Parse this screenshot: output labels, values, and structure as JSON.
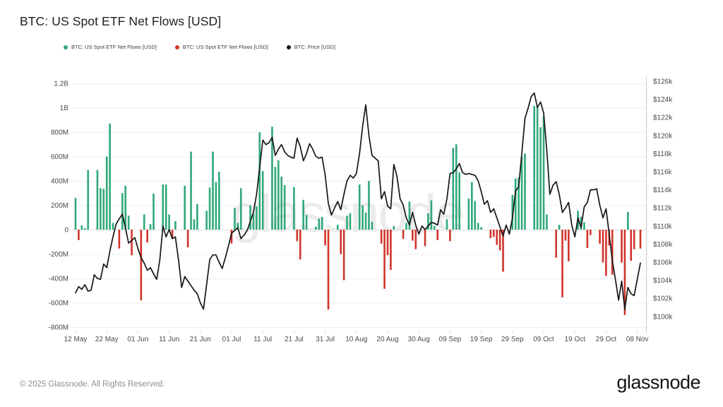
{
  "header": {
    "title": "BTC: US Spot ETF Net Flows [USD]"
  },
  "legend": [
    {
      "label": "BTC: US Spot ETF Net Flows [USD]",
      "color": "#2FA878"
    },
    {
      "label": "BTC: US Spot ETF Net Flows [USD]",
      "color": "#D0342C"
    },
    {
      "label": "BTC: Price [USD]",
      "color": "#161616"
    }
  ],
  "watermark": "glassnode",
  "footer": {
    "copyright": "© 2025 Glassnode. All Rights Reserved.",
    "logo_text": "glassnode"
  },
  "chart_data": {
    "type": "bar+line",
    "title": "BTC: US Spot ETF Net Flows [USD]",
    "x_axis": {
      "start_date": "12 May",
      "end_date": "08 Nov",
      "tick_labels": [
        "12 May",
        "22 May",
        "01 Jun",
        "11 Jun",
        "21 Jun",
        "01 Jul",
        "11 Jul",
        "21 Jul",
        "31 Jul",
        "10 Aug",
        "20 Aug",
        "30 Aug",
        "09 Sep",
        "19 Sep",
        "29 Sep",
        "09 Oct",
        "19 Oct",
        "29 Oct",
        "08 Nov"
      ],
      "tick_day_index": [
        0,
        10,
        20,
        30,
        40,
        50,
        60,
        70,
        80,
        90,
        100,
        110,
        120,
        130,
        140,
        150,
        160,
        170,
        180
      ]
    },
    "left_axis": {
      "series": "ETF net flows (USD)",
      "tick_labels": [
        "1.2B",
        "1B",
        "800M",
        "600M",
        "400M",
        "200M",
        "0",
        "-200M",
        "-400M",
        "-600M",
        "-800M"
      ],
      "tick_values_musd": [
        1200,
        1000,
        800,
        600,
        400,
        200,
        0,
        -200,
        -400,
        -600,
        -800
      ],
      "range_musd": [
        -800,
        1200
      ],
      "grid": true
    },
    "right_axis": {
      "series": "BTC price (USD)",
      "tick_labels": [
        "$126k",
        "$124k",
        "$122k",
        "$120k",
        "$118k",
        "$116k",
        "$114k",
        "$112k",
        "$110k",
        "$108k",
        "$106k",
        "$104k",
        "$102k",
        "$100k"
      ],
      "tick_values_kusd": [
        126,
        124,
        122,
        120,
        118,
        116,
        114,
        112,
        110,
        108,
        106,
        104,
        102,
        100
      ]
    },
    "bars_musd": [
      [
        0,
        260
      ],
      [
        1,
        -85
      ],
      [
        2,
        35
      ],
      [
        3,
        12
      ],
      [
        4,
        490
      ],
      [
        7,
        490
      ],
      [
        8,
        340
      ],
      [
        9,
        335
      ],
      [
        10,
        600
      ],
      [
        11,
        870
      ],
      [
        12,
        55
      ],
      [
        14,
        -155
      ],
      [
        15,
        300
      ],
      [
        16,
        360
      ],
      [
        17,
        115
      ],
      [
        18,
        -210
      ],
      [
        21,
        -580
      ],
      [
        22,
        125
      ],
      [
        23,
        -105
      ],
      [
        24,
        45
      ],
      [
        25,
        295
      ],
      [
        28,
        370
      ],
      [
        29,
        370
      ],
      [
        30,
        125
      ],
      [
        31,
        -70
      ],
      [
        32,
        70
      ],
      [
        35,
        360
      ],
      [
        36,
        -145
      ],
      [
        37,
        640
      ],
      [
        38,
        85
      ],
      [
        39,
        210
      ],
      [
        42,
        155
      ],
      [
        43,
        345
      ],
      [
        44,
        640
      ],
      [
        45,
        390
      ],
      [
        46,
        475
      ],
      [
        50,
        -115
      ],
      [
        51,
        180
      ],
      [
        52,
        55
      ],
      [
        53,
        340
      ],
      [
        56,
        200
      ],
      [
        57,
        130
      ],
      [
        58,
        190
      ],
      [
        59,
        800
      ],
      [
        60,
        480
      ],
      [
        63,
        845
      ],
      [
        64,
        515
      ],
      [
        65,
        570
      ],
      [
        66,
        435
      ],
      [
        67,
        365
      ],
      [
        70,
        350
      ],
      [
        71,
        -95
      ],
      [
        72,
        -245
      ],
      [
        73,
        245
      ],
      [
        74,
        120
      ],
      [
        77,
        25
      ],
      [
        78,
        90
      ],
      [
        79,
        105
      ],
      [
        80,
        -130
      ],
      [
        81,
        -655
      ],
      [
        84,
        40
      ],
      [
        85,
        -200
      ],
      [
        86,
        -415
      ],
      [
        87,
        115
      ],
      [
        88,
        135
      ],
      [
        91,
        370
      ],
      [
        92,
        200
      ],
      [
        93,
        140
      ],
      [
        94,
        400
      ],
      [
        95,
        65
      ],
      [
        98,
        -115
      ],
      [
        99,
        -485
      ],
      [
        100,
        -210
      ],
      [
        101,
        -330
      ],
      [
        102,
        30
      ],
      [
        105,
        -75
      ],
      [
        106,
        55
      ],
      [
        107,
        230
      ],
      [
        108,
        -90
      ],
      [
        109,
        -160
      ],
      [
        112,
        -135
      ],
      [
        113,
        135
      ],
      [
        114,
        240
      ],
      [
        115,
        30
      ],
      [
        116,
        -85
      ],
      [
        119,
        85
      ],
      [
        120,
        -95
      ],
      [
        121,
        670
      ],
      [
        122,
        700
      ],
      [
        123,
        470
      ],
      [
        126,
        255
      ],
      [
        127,
        390
      ],
      [
        128,
        235
      ],
      [
        129,
        55
      ],
      [
        130,
        20
      ],
      [
        133,
        -70
      ],
      [
        134,
        -60
      ],
      [
        135,
        -125
      ],
      [
        136,
        -170
      ],
      [
        137,
        -345
      ],
      [
        140,
        285
      ],
      [
        141,
        420
      ],
      [
        142,
        430
      ],
      [
        143,
        600
      ],
      [
        144,
        625
      ],
      [
        147,
        1015
      ],
      [
        148,
        1010
      ],
      [
        149,
        840
      ],
      [
        150,
        930
      ],
      [
        151,
        125
      ],
      [
        154,
        -230
      ],
      [
        155,
        40
      ],
      [
        156,
        -555
      ],
      [
        157,
        -90
      ],
      [
        158,
        -260
      ],
      [
        161,
        155
      ],
      [
        162,
        105
      ],
      [
        163,
        60
      ],
      [
        164,
        -150
      ],
      [
        165,
        -45
      ],
      [
        168,
        -115
      ],
      [
        169,
        -270
      ],
      [
        170,
        -380
      ],
      [
        171,
        -130
      ],
      [
        172,
        -370
      ],
      [
        175,
        -270
      ],
      [
        176,
        -700
      ],
      [
        177,
        145
      ],
      [
        178,
        -255
      ],
      [
        179,
        -160
      ],
      [
        181,
        -155
      ]
    ],
    "price_kusd": [
      102.6,
      103.3,
      103.0,
      103.5,
      102.8,
      102.9,
      104.6,
      104.2,
      104.1,
      105.8,
      105.4,
      107.2,
      108.8,
      110.2,
      110.8,
      111.3,
      109.8,
      108.1,
      108.4,
      108.7,
      107.5,
      106.5,
      105.9,
      105.1,
      105.4,
      104.7,
      104.1,
      106.2,
      110.0,
      108.8,
      109.6,
      108.6,
      108.8,
      106.2,
      103.2,
      104.4,
      103.9,
      103.4,
      102.9,
      102.5,
      101.5,
      100.8,
      103.5,
      106.3,
      106.8,
      106.8,
      106.0,
      105.3,
      106.5,
      107.8,
      109.2,
      109.5,
      109.8,
      108.6,
      109.0,
      109.5,
      110.5,
      111.5,
      113.5,
      116.5,
      119.5,
      119.0,
      119.2,
      119.8,
      117.8,
      118.5,
      119.0,
      118.2,
      117.8,
      117.6,
      117.5,
      119.7,
      118.8,
      117.2,
      118.0,
      119.1,
      118.5,
      117.7,
      117.5,
      117.6,
      115.6,
      112.5,
      111.2,
      112.0,
      112.7,
      111.8,
      113.5,
      115.0,
      115.6,
      115.3,
      115.8,
      118.0,
      121.0,
      123.4,
      120.0,
      117.8,
      117.5,
      117.2,
      113.0,
      113.8,
      112.2,
      111.9,
      116.8,
      115.5,
      113.0,
      112.3,
      110.9,
      110.1,
      111.5,
      110.1,
      109.1,
      110.0,
      109.6,
      110.0,
      110.4,
      110.3,
      110.1,
      111.8,
      111.3,
      113.0,
      115.8,
      115.9,
      116.3,
      116.9,
      115.9,
      115.7,
      115.8,
      115.7,
      115.6,
      115.0,
      113.8,
      112.4,
      112.8,
      111.5,
      111.9,
      110.9,
      109.9,
      108.9,
      110.1,
      109.1,
      110.9,
      113.9,
      114.3,
      118.0,
      121.9,
      123.0,
      124.3,
      124.7,
      123.1,
      123.7,
      122.5,
      118.4,
      113.5,
      114.5,
      114.9,
      113.5,
      111.5,
      112.0,
      112.6,
      110.1,
      108.8,
      110.9,
      109.8,
      112.1,
      112.6,
      114.0,
      114.0,
      114.1,
      112.3,
      110.9,
      111.9,
      109.1,
      106.2,
      104.1,
      101.8,
      103.9,
      100.8,
      103.2,
      102.5,
      102.3,
      104.1,
      105.9
    ],
    "colors": {
      "inflow": "#2FA878",
      "outflow": "#D0342C",
      "price_line": "#161616",
      "grid": "#efefef",
      "zero_line": "#e2e2e2",
      "axis_line": "#c9c9c9",
      "tick_mark": "#d9d9d9",
      "tick_text": "#4a4a4a",
      "watermark": "#ebebeb"
    },
    "legend_position": "top-left",
    "grid": "horizontal-only"
  }
}
